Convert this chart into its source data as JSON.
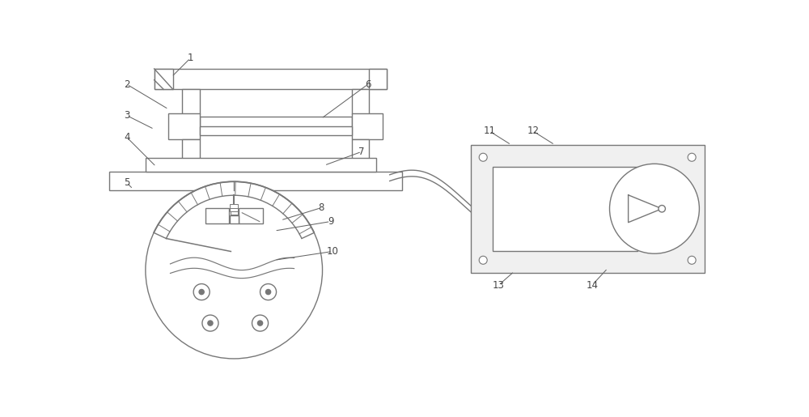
{
  "bg_color": "#ffffff",
  "line_color": "#777777",
  "lw": 1.0,
  "fig_width": 10.0,
  "fig_height": 5.15,
  "label_fs": 8.5,
  "label_color": "#444444",
  "leader_color": "#666666"
}
